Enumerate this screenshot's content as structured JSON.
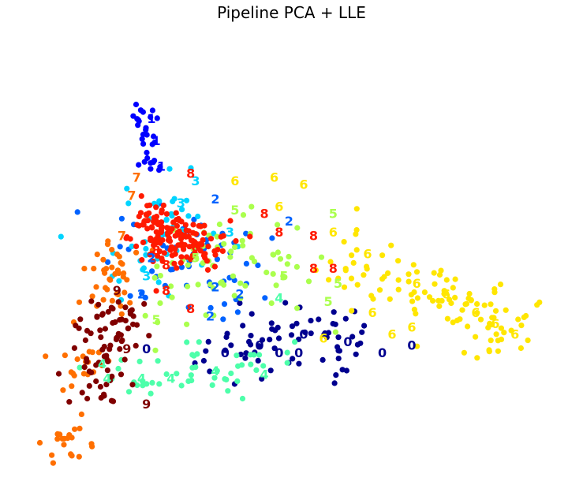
{
  "chart_data": {
    "type": "scatter",
    "title": "Pipeline PCA + LLE",
    "xlabel": "",
    "ylabel": "",
    "axes_visible": false,
    "grid": false,
    "xlim": [
      -0.05,
      1.05
    ],
    "ylim": [
      -0.05,
      1.05
    ],
    "colormap": "jet",
    "series": [
      {
        "name": "0",
        "color": "#00008f",
        "cluster": {
          "centers": [
            [
              0.55,
              0.33
            ],
            [
              0.6,
              0.3
            ],
            [
              0.45,
              0.35
            ],
            [
              0.38,
              0.28
            ]
          ],
          "spread": 0.05,
          "count": 70
        },
        "labels": [
          [
            0.2,
            0.3
          ],
          [
            0.43,
            0.31
          ],
          [
            0.36,
            0.29
          ],
          [
            0.47,
            0.29
          ],
          [
            0.51,
            0.29
          ],
          [
            0.52,
            0.34
          ],
          [
            0.61,
            0.32
          ],
          [
            0.74,
            0.31
          ],
          [
            0.68,
            0.29
          ]
        ]
      },
      {
        "name": "1",
        "color": "#0000ff",
        "cluster": {
          "centers": [
            [
              0.19,
              0.94
            ],
            [
              0.2,
              0.88
            ],
            [
              0.21,
              0.8
            ]
          ],
          "spread": 0.015,
          "count": 30
        },
        "labels": [
          [
            0.21,
            0.93
          ],
          [
            0.22,
            0.87
          ],
          [
            0.23,
            0.8
          ]
        ]
      },
      {
        "name": "2",
        "color": "#0062ff",
        "cluster": {
          "centers": [
            [
              0.3,
              0.55
            ],
            [
              0.22,
              0.6
            ],
            [
              0.35,
              0.5
            ]
          ],
          "spread": 0.07,
          "count": 60
        },
        "labels": [
          [
            0.34,
            0.71
          ],
          [
            0.49,
            0.65
          ],
          [
            0.21,
            0.55
          ],
          [
            0.34,
            0.47
          ],
          [
            0.39,
            0.45
          ],
          [
            0.19,
            0.45
          ],
          [
            0.33,
            0.39
          ]
        ]
      },
      {
        "name": "3",
        "color": "#00d4ff",
        "cluster": {
          "centers": [
            [
              0.25,
              0.68
            ],
            [
              0.2,
              0.55
            ]
          ],
          "spread": 0.05,
          "count": 45
        },
        "labels": [
          [
            0.3,
            0.76
          ],
          [
            0.37,
            0.62
          ],
          [
            0.27,
            0.7
          ],
          [
            0.2,
            0.5
          ]
        ]
      },
      {
        "name": "4",
        "color": "#4dffaa",
        "cluster": {
          "centers": [
            [
              0.18,
              0.24
            ],
            [
              0.3,
              0.25
            ],
            [
              0.42,
              0.25
            ]
          ],
          "spread": 0.04,
          "count": 50
        },
        "labels": [
          [
            0.11,
            0.26
          ],
          [
            0.12,
            0.22
          ],
          [
            0.19,
            0.22
          ],
          [
            0.25,
            0.22
          ],
          [
            0.34,
            0.24
          ],
          [
            0.44,
            0.23
          ],
          [
            0.47,
            0.44
          ]
        ]
      },
      {
        "name": "5",
        "color": "#aaff4d",
        "cluster": {
          "centers": [
            [
              0.36,
              0.55
            ],
            [
              0.28,
              0.5
            ],
            [
              0.45,
              0.5
            ]
          ],
          "spread": 0.06,
          "count": 70
        },
        "labels": [
          [
            0.38,
            0.68
          ],
          [
            0.58,
            0.67
          ],
          [
            0.3,
            0.55
          ],
          [
            0.48,
            0.5
          ],
          [
            0.59,
            0.48
          ],
          [
            0.57,
            0.43
          ],
          [
            0.22,
            0.38
          ]
        ]
      },
      {
        "name": "6",
        "color": "#ffe600",
        "cluster": {
          "centers": [
            [
              0.85,
              0.4
            ],
            [
              0.75,
              0.45
            ],
            [
              0.65,
              0.52
            ],
            [
              0.92,
              0.35
            ]
          ],
          "spread": 0.05,
          "count": 110
        },
        "labels": [
          [
            0.38,
            0.76
          ],
          [
            0.46,
            0.77
          ],
          [
            0.52,
            0.75
          ],
          [
            0.47,
            0.69
          ],
          [
            0.58,
            0.62
          ],
          [
            0.65,
            0.56
          ],
          [
            0.75,
            0.48
          ],
          [
            0.81,
            0.45
          ],
          [
            0.87,
            0.4
          ],
          [
            0.91,
            0.37
          ],
          [
            0.95,
            0.34
          ],
          [
            0.56,
            0.33
          ],
          [
            0.66,
            0.4
          ],
          [
            0.7,
            0.34
          ],
          [
            0.74,
            0.36
          ]
        ]
      },
      {
        "name": "7",
        "color": "#ff6f00",
        "cluster": {
          "centers": [
            [
              0.14,
              0.55
            ],
            [
              0.12,
              0.45
            ],
            [
              0.08,
              0.25
            ],
            [
              0.05,
              0.05
            ]
          ],
          "spread": 0.03,
          "count": 80
        },
        "labels": [
          [
            0.18,
            0.77
          ],
          [
            0.17,
            0.72
          ],
          [
            0.15,
            0.61
          ]
        ]
      },
      {
        "name": "8",
        "color": "#ff1a00",
        "cluster": {
          "centers": [
            [
              0.22,
              0.64
            ],
            [
              0.24,
              0.6
            ],
            [
              0.3,
              0.58
            ]
          ],
          "spread": 0.035,
          "count": 150
        },
        "labels": [
          [
            0.29,
            0.78
          ],
          [
            0.44,
            0.67
          ],
          [
            0.47,
            0.62
          ],
          [
            0.54,
            0.61
          ],
          [
            0.54,
            0.52
          ],
          [
            0.29,
            0.41
          ],
          [
            0.24,
            0.53
          ],
          [
            0.3,
            0.58
          ],
          [
            0.22,
            0.57
          ],
          [
            0.24,
            0.46
          ],
          [
            0.58,
            0.52
          ]
        ]
      },
      {
        "name": "9",
        "color": "#800000",
        "cluster": {
          "centers": [
            [
              0.11,
              0.3
            ],
            [
              0.1,
              0.2
            ],
            [
              0.15,
              0.35
            ],
            [
              0.13,
              0.4
            ]
          ],
          "spread": 0.03,
          "count": 80
        },
        "labels": [
          [
            0.14,
            0.46
          ],
          [
            0.16,
            0.3
          ],
          [
            0.2,
            0.15
          ]
        ]
      }
    ]
  }
}
